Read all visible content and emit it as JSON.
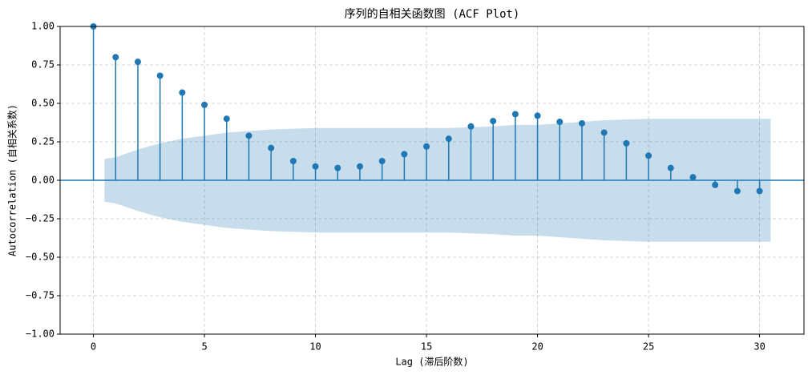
{
  "chart_data": {
    "type": "stem",
    "title": "序列的自相关函数图 (ACF Plot)",
    "x_label": "Lag (滞后阶数)",
    "y_label": "Autocorrelation (自相关系数)",
    "color": "#1f77b4",
    "grid": true,
    "x": [
      0,
      1,
      2,
      3,
      4,
      5,
      6,
      7,
      8,
      9,
      10,
      11,
      12,
      13,
      14,
      15,
      16,
      17,
      18,
      19,
      20,
      21,
      22,
      23,
      24,
      25,
      26,
      27,
      28,
      29,
      30
    ],
    "values": [
      1.0,
      0.8,
      0.77,
      0.68,
      0.57,
      0.49,
      0.4,
      0.29,
      0.21,
      0.125,
      0.09,
      0.08,
      0.09,
      0.125,
      0.17,
      0.22,
      0.27,
      0.35,
      0.385,
      0.43,
      0.42,
      0.38,
      0.37,
      0.31,
      0.24,
      0.16,
      0.08,
      0.02,
      -0.03,
      -0.07,
      -0.07
    ],
    "confidence_band": {
      "color": "#1f77b4",
      "x": [
        0.5,
        1,
        2,
        3,
        4,
        5,
        6,
        7,
        8,
        9,
        10,
        11,
        12,
        13,
        14,
        15,
        16,
        17,
        18,
        19,
        20,
        21,
        22,
        23,
        24,
        25,
        26,
        27,
        28,
        29,
        30,
        30.5
      ],
      "values": [
        0.14,
        0.15,
        0.2,
        0.24,
        0.27,
        0.29,
        0.31,
        0.32,
        0.33,
        0.335,
        0.34,
        0.34,
        0.34,
        0.34,
        0.34,
        0.34,
        0.34,
        0.345,
        0.35,
        0.36,
        0.36,
        0.37,
        0.38,
        0.39,
        0.395,
        0.4,
        0.4,
        0.4,
        0.4,
        0.4,
        0.4,
        0.4
      ]
    },
    "xlim": [
      -1.5,
      32
    ],
    "ylim": [
      -1,
      1
    ],
    "xticks": [
      0,
      5,
      10,
      15,
      20,
      25,
      30
    ],
    "yticks": [
      {
        "value": -1,
        "label": "−1.00"
      },
      {
        "value": -0.75,
        "label": "−0.75"
      },
      {
        "value": -0.5,
        "label": "−0.50"
      },
      {
        "value": -0.25,
        "label": "−0.25"
      },
      {
        "value": 0,
        "label": "0.00"
      },
      {
        "value": 0.25,
        "label": "0.25"
      },
      {
        "value": 0.5,
        "label": "0.50"
      },
      {
        "value": 0.75,
        "label": "0.75"
      },
      {
        "value": 1,
        "label": "1.00"
      }
    ]
  }
}
